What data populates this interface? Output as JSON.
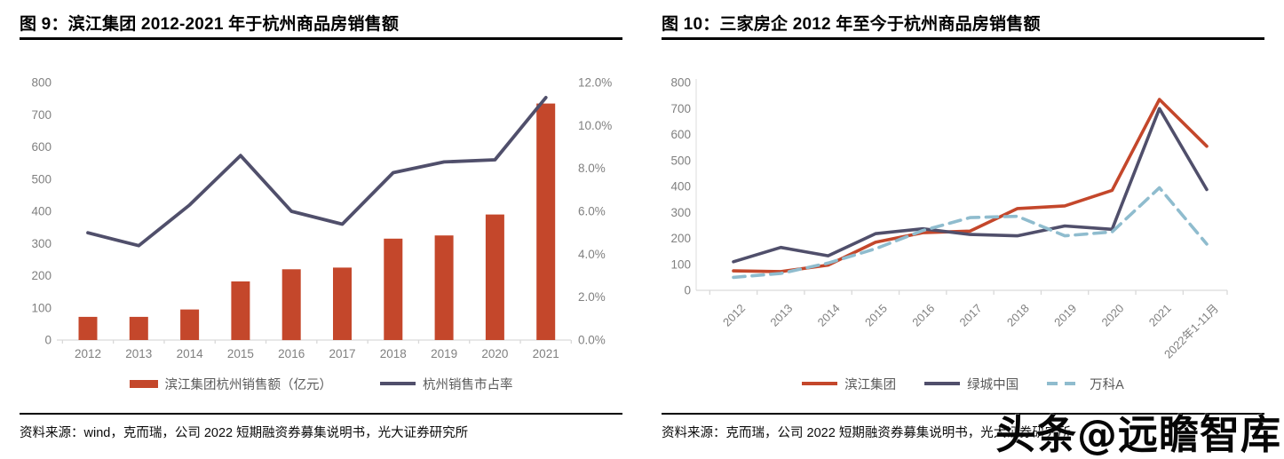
{
  "fig9": {
    "title": "图 9：滨江集团 2012-2021 年于杭州商品房销售额",
    "source": "资料来源：wind，克而瑞，公司 2022 短期融资券募集说明书，光大证券研究所"
  },
  "fig10": {
    "title": "图 10：三家房企 2012 年至今于杭州商品房销售额",
    "source": "资料来源：克而瑞，公司 2022 短期融资券募集说明书，光大证券研究所"
  },
  "watermark": "头条@远瞻智库",
  "colors": {
    "accent_red": "#C4472B",
    "navy": "#504F6B",
    "light_blue": "#8FBCCE",
    "axis_gray": "#D9D9D9",
    "label_gray": "#808080",
    "legend_text": "#595959",
    "rule_black": "#000000"
  },
  "chart_data": [
    {
      "type": "bar+line",
      "title": "滨江集团 2012-2021 年于杭州商品房销售额",
      "categories": [
        "2012",
        "2013",
        "2014",
        "2015",
        "2016",
        "2017",
        "2018",
        "2019",
        "2020",
        "2021"
      ],
      "series": [
        {
          "name": "滨江集团杭州销售额（亿元）",
          "type": "bar",
          "axis": "left",
          "color": "#C4472B",
          "values": [
            72,
            72,
            95,
            182,
            220,
            225,
            315,
            325,
            390,
            735
          ]
        },
        {
          "name": "杭州销售市占率",
          "type": "line",
          "axis": "right",
          "color": "#504F6B",
          "values": [
            5.0,
            4.4,
            6.3,
            8.6,
            6.0,
            5.4,
            7.8,
            8.3,
            8.4,
            11.3
          ]
        }
      ],
      "left_axis": {
        "min": 0,
        "max": 800,
        "step": 100
      },
      "right_axis": {
        "min": 0,
        "max": 12,
        "step": 2,
        "unit": "%"
      },
      "legend_position": "bottom",
      "grid": false
    },
    {
      "type": "line",
      "title": "三家房企 2012 年至今于杭州商品房销售额",
      "categories": [
        "2012",
        "2013",
        "2014",
        "2015",
        "2016",
        "2017",
        "2018",
        "2019",
        "2020",
        "2021",
        "2022年1-11月"
      ],
      "series": [
        {
          "name": "滨江集团",
          "color": "#C4472B",
          "dash": false,
          "values": [
            75,
            72,
            97,
            185,
            222,
            228,
            315,
            325,
            385,
            735,
            555
          ]
        },
        {
          "name": "绿城中国",
          "color": "#504F6B",
          "dash": false,
          "values": [
            110,
            165,
            133,
            218,
            237,
            215,
            210,
            248,
            235,
            700,
            388
          ]
        },
        {
          "name": "万科A",
          "color": "#8FBCCE",
          "dash": true,
          "values": [
            50,
            65,
            105,
            160,
            230,
            280,
            285,
            210,
            225,
            395,
            178
          ]
        }
      ],
      "y_axis": {
        "min": 0,
        "max": 800,
        "step": 100
      },
      "legend_position": "bottom",
      "grid": false
    }
  ]
}
